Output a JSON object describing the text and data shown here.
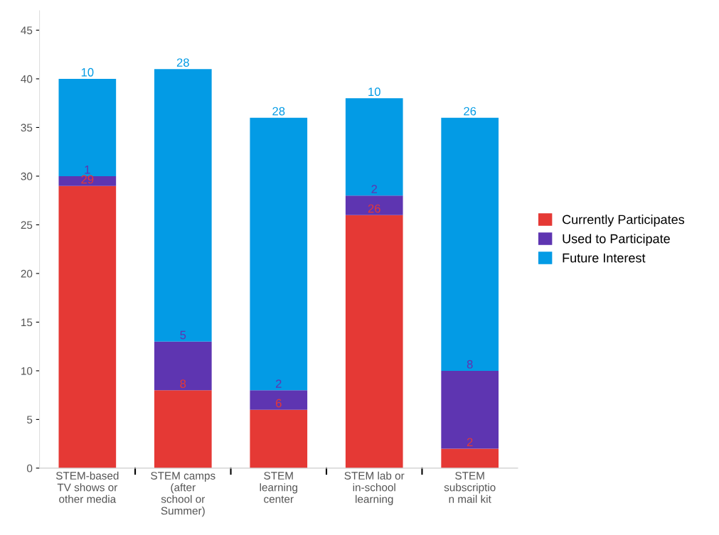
{
  "chart_data": {
    "type": "bar",
    "stacked": true,
    "data_labels": true,
    "legend": "right",
    "grid": false,
    "categories": [
      "STEM-based\nTV shows or\nother media",
      "STEM camps\n(after\nschool or\nSummer)",
      "STEM\nlearning\ncenter",
      "STEM lab or\nin-school\nlearning",
      "STEM\nsubscriptio\nn mail kit"
    ],
    "series": [
      {
        "name": "Currently Participates",
        "color": "#e53935",
        "values": [
          29,
          8,
          6,
          26,
          2
        ]
      },
      {
        "name": "Used to Participate",
        "color": "#5e35b1",
        "values": [
          1,
          5,
          2,
          2,
          8
        ]
      },
      {
        "name": "Future Interest",
        "color": "#039be5",
        "values": [
          10,
          28,
          28,
          10,
          26
        ]
      }
    ],
    "ylim": [
      0,
      47
    ],
    "yticks": [
      0,
      5,
      10,
      15,
      20,
      25,
      30,
      35,
      40,
      45
    ]
  }
}
